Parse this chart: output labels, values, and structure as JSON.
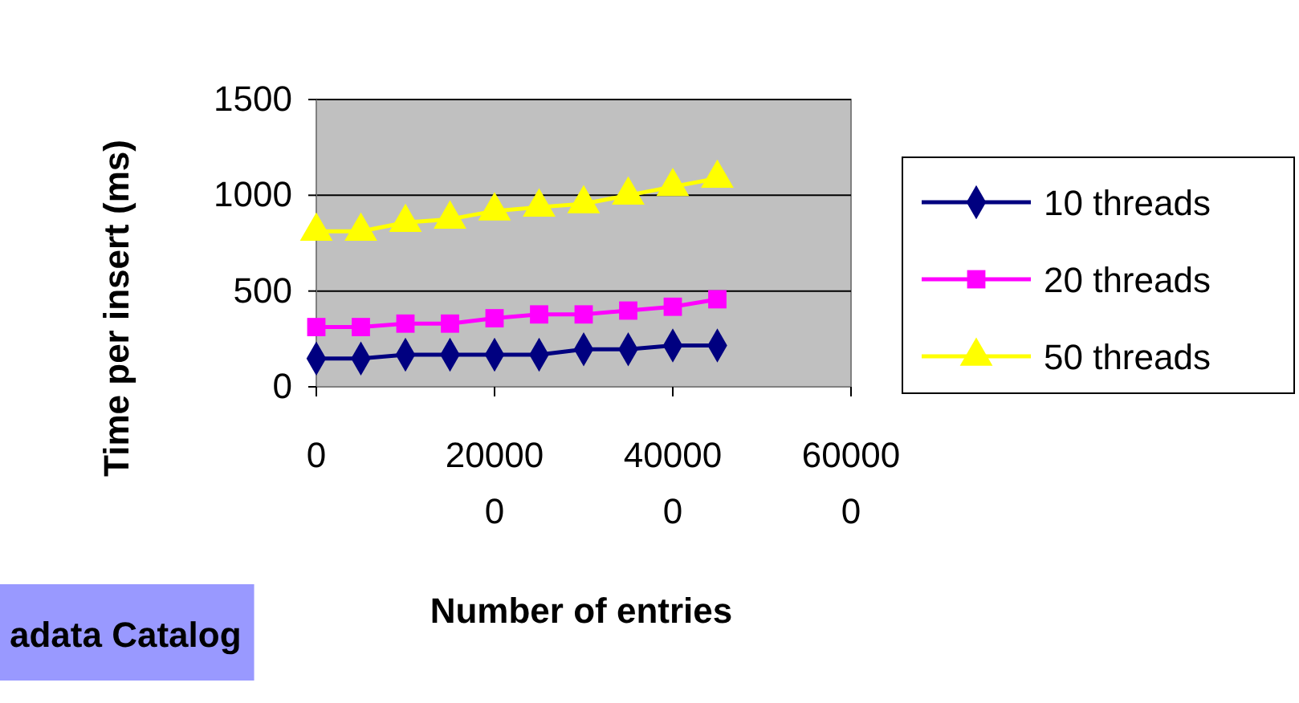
{
  "chart_data": {
    "type": "line",
    "xlabel": "Number of entries",
    "ylabel": "Time per insert (ms)",
    "x": [
      0,
      50000,
      100000,
      150000,
      200000,
      250000,
      300000,
      350000,
      400000,
      450000
    ],
    "series": [
      {
        "name": "10 threads",
        "color": "#000080",
        "marker": "diamond",
        "values": [
          148,
          148,
          168,
          168,
          168,
          168,
          196,
          196,
          216,
          216
        ]
      },
      {
        "name": "20 threads",
        "color": "#ff00ff",
        "marker": "square",
        "values": [
          312,
          312,
          330,
          330,
          358,
          378,
          378,
          398,
          418,
          457
        ]
      },
      {
        "name": "50 threads",
        "color": "#ffff00",
        "marker": "triangle",
        "values": [
          812,
          812,
          858,
          875,
          918,
          938,
          955,
          1000,
          1045,
          1088
        ]
      }
    ],
    "xlim": [
      0,
      600000
    ],
    "xticks": [
      0,
      200000,
      400000,
      600000
    ],
    "ylim": [
      0,
      1500
    ],
    "yticks": [
      0,
      500,
      1000,
      1500
    ],
    "grid": "y",
    "legend": "right",
    "annotations": [
      "adata Catalog"
    ]
  }
}
